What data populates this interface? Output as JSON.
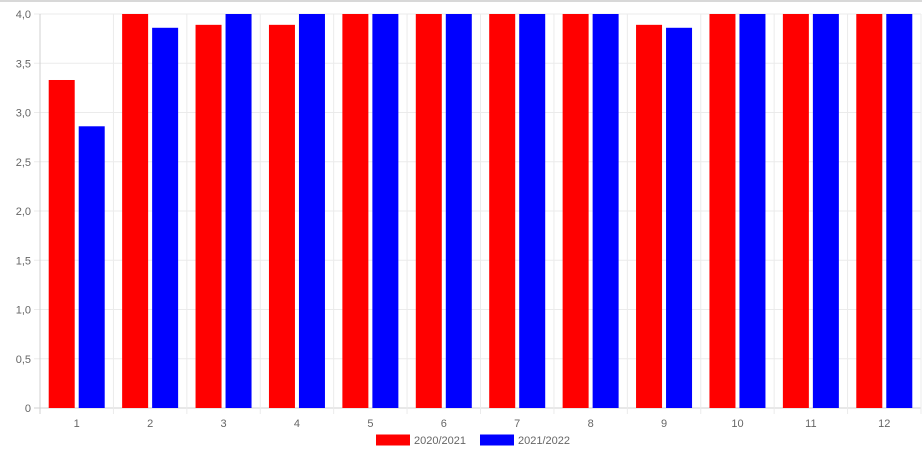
{
  "chart_data": {
    "type": "bar",
    "title": "",
    "xlabel": "",
    "ylabel": "",
    "categories": [
      "1",
      "2",
      "3",
      "4",
      "5",
      "6",
      "7",
      "8",
      "9",
      "10",
      "11",
      "12"
    ],
    "series": [
      {
        "name": "2020/2021",
        "color": "#ff0000",
        "values": [
          3.33,
          4.0,
          3.89,
          3.89,
          4.0,
          4.0,
          4.0,
          4.0,
          3.89,
          4.0,
          4.0,
          4.0
        ]
      },
      {
        "name": "2021/2022",
        "color": "#0000ff",
        "values": [
          2.86,
          3.86,
          4.0,
          4.0,
          4.0,
          4.0,
          4.0,
          4.0,
          3.86,
          4.0,
          4.0,
          4.0
        ]
      }
    ],
    "ylim": [
      0,
      4
    ],
    "yticks": [
      "0",
      "0,5",
      "1,0",
      "1,5",
      "2,0",
      "2,5",
      "3,0",
      "3,5",
      "4,0"
    ],
    "grid": true,
    "legend_position": "bottom"
  }
}
